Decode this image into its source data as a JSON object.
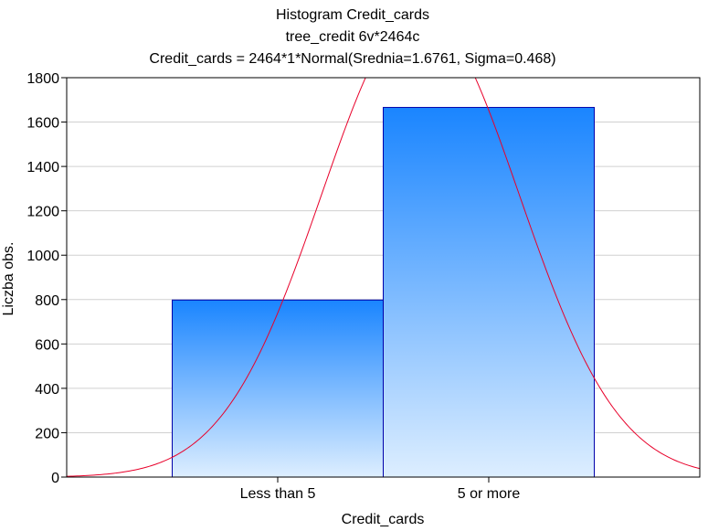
{
  "chart_data": {
    "type": "bar",
    "title_line1": "Histogram     Credit_cards",
    "title_line2": "tree_credit 6v*2464c",
    "title_line3": "Credit_cards = 2464*1*Normal(Srednia=1.6761, Sigma=0.468)",
    "xlabel": "Credit_cards",
    "ylabel": "Liczba obs.",
    "categories": [
      "Less than 5",
      "5 or more"
    ],
    "values": [
      798,
      1666
    ],
    "ylim": [
      0,
      1800
    ],
    "yticks": [
      0,
      200,
      400,
      600,
      800,
      1000,
      1200,
      1400,
      1600,
      1800
    ],
    "grid": true,
    "fit_curve": {
      "type": "normal",
      "n": 2464,
      "mean": 1.6761,
      "sigma": 0.468,
      "bin_width": 1
    },
    "colors": {
      "bar_top": "#1a85ff",
      "bar_bottom": "#ddeeff",
      "bar_border": "#0000aa",
      "curve": "#e8002a",
      "grid": "#d0d0d0"
    }
  }
}
